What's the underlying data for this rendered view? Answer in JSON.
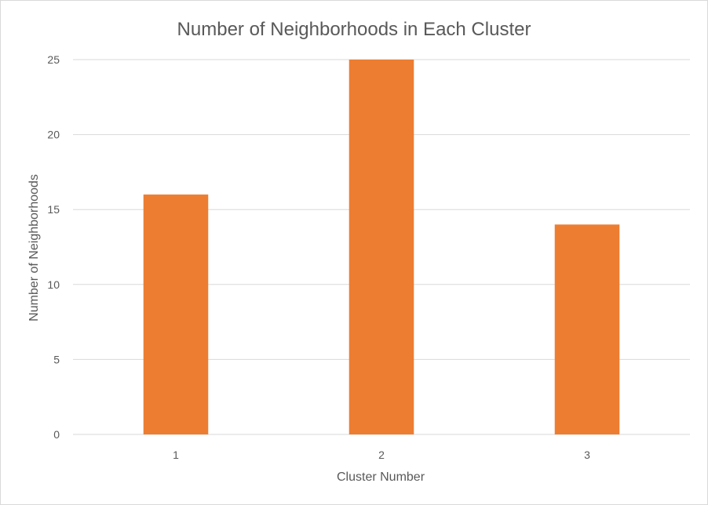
{
  "chart_data": {
    "type": "bar",
    "title": "Number of Neighborhoods in Each Cluster",
    "xlabel": "Cluster Number",
    "ylabel": "Number of Neighborhoods",
    "categories": [
      "1",
      "2",
      "3"
    ],
    "values": [
      16,
      25,
      14
    ],
    "ylim": [
      0,
      25
    ],
    "yticks": [
      0,
      5,
      10,
      15,
      20,
      25
    ],
    "grid": true,
    "legend": "none",
    "bar_color": "#ED7D31",
    "grid_color": "#D9D9D9",
    "text_color": "#595959"
  }
}
